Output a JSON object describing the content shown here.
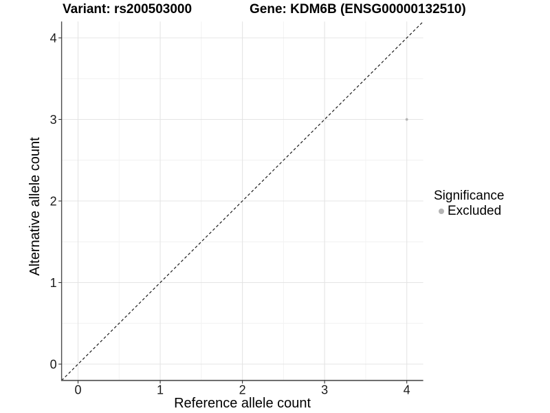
{
  "titles": {
    "variant": "Variant: rs200503000",
    "gene": "Gene: KDM6B (ENSG00000132510)"
  },
  "legend": {
    "title": "Significance",
    "items": [
      {
        "label": "Excluded",
        "color": "#b4b4b4"
      }
    ]
  },
  "colors": {
    "background": "#ffffff",
    "point": "#b4b4b4",
    "grid_major": "#e4e4e4",
    "grid_minor": "#f1f1f1",
    "axis_line": "#4a4a4a",
    "tick_mark": "#333333",
    "tick_label": "#1a1a1a",
    "axis_title": "#000000",
    "reference_line": "#1a1a1a"
  },
  "chart_data": {
    "type": "scatter",
    "title_left": "Variant: rs200503000",
    "title_right": "Gene: KDM6B (ENSG00000132510)",
    "xlabel": "Reference allele count",
    "ylabel": "Alternative allele count",
    "xlim": [
      -0.2,
      4.2
    ],
    "ylim": [
      -0.2,
      4.2
    ],
    "xticks": [
      0,
      1,
      2,
      3,
      4
    ],
    "yticks": [
      0,
      1,
      2,
      3,
      4
    ],
    "grid": true,
    "minor_grid": true,
    "legend_position": "right",
    "legend_title": "Significance",
    "series": [
      {
        "name": "Excluded",
        "color": "#b4b4b4",
        "points": [
          {
            "x": 4,
            "y": 3
          }
        ]
      }
    ],
    "reference_line": {
      "slope": 1,
      "intercept": 0,
      "style": "dashed"
    }
  }
}
